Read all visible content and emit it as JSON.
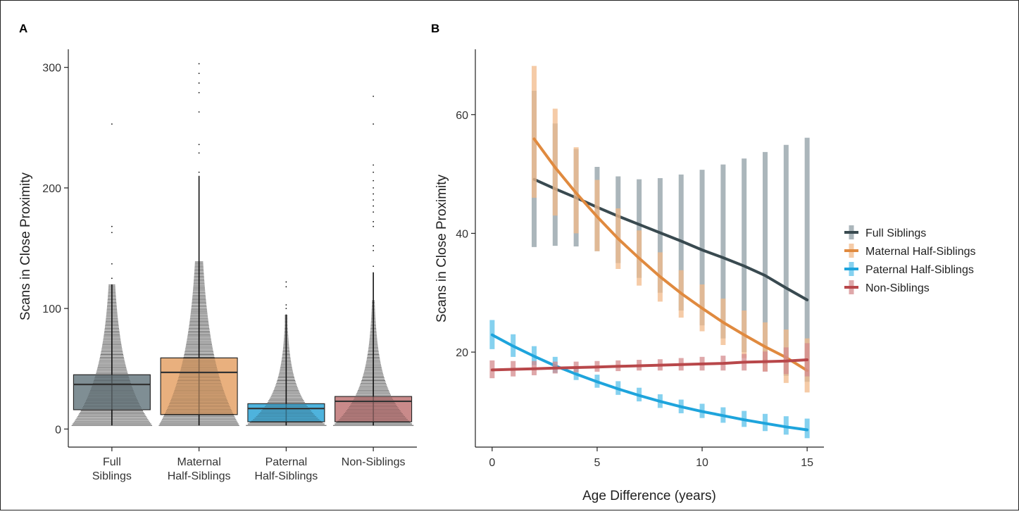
{
  "figure": {
    "border_color": "#222222"
  },
  "panel_a": {
    "label": "A",
    "chart_data": {
      "type": "box",
      "ylabel": "Scans in Close Proximity",
      "xlabel": "",
      "ylim": [
        -15,
        315
      ],
      "yticks": [
        0,
        100,
        200,
        300
      ],
      "grid": false,
      "categories": [
        {
          "lines": [
            "Full",
            "Siblings"
          ],
          "color": "#7f8e94",
          "q1": 16,
          "median": 37,
          "q3": 45,
          "whisker_low": 3,
          "whisker_high": 120,
          "outliers": [
            125,
            137,
            163,
            168,
            253
          ]
        },
        {
          "lines": [
            "Maternal",
            "Half-Siblings"
          ],
          "color": "#e9b07e",
          "q1": 12,
          "median": 47,
          "q3": 59,
          "whisker_low": 3,
          "whisker_high": 210,
          "outliers": [
            213,
            229,
            236,
            263,
            279,
            287,
            295,
            303
          ]
        },
        {
          "lines": [
            "Paternal",
            "Half-Siblings"
          ],
          "color": "#4fb3dd",
          "q1": 6,
          "median": 17,
          "q3": 21,
          "whisker_low": 3,
          "whisker_high": 95,
          "outliers": [
            100,
            103,
            118,
            122
          ]
        },
        {
          "lines": [
            "Non-Siblings"
          ],
          "color": "#c98a8a",
          "q1": 6,
          "median": 23,
          "q3": 27,
          "whisker_low": 3,
          "whisker_high": 130,
          "outliers": [
            135,
            148,
            152,
            168,
            172,
            180,
            185,
            190,
            195,
            200,
            206,
            213,
            219,
            253,
            276
          ]
        }
      ]
    }
  },
  "panel_b": {
    "label": "B",
    "chart_data": {
      "type": "line",
      "xlabel": "Age Difference (years)",
      "ylabel": "Scans in Close Proximity",
      "xlim": [
        -0.8,
        15.8
      ],
      "ylim": [
        4,
        71
      ],
      "xticks": [
        0,
        5,
        10,
        15
      ],
      "yticks": [
        20,
        40,
        60
      ],
      "grid": false,
      "legend_position": "right",
      "series": [
        {
          "name": "Full Siblings",
          "color": "#394a50",
          "band_color": "#8f9ea4",
          "x": [
            2,
            3,
            4,
            5,
            6,
            7,
            8,
            9,
            10,
            11,
            12,
            13,
            14,
            15
          ],
          "y": [
            49.1,
            47.5,
            46.0,
            44.4,
            42.9,
            41.5,
            40.1,
            38.7,
            37.2,
            35.9,
            34.5,
            32.9,
            30.8,
            28.8
          ],
          "lo": [
            37.7,
            37.9,
            37.8,
            37.0,
            35.0,
            32.5,
            30.0,
            27.0,
            24.5,
            22.3,
            20.0,
            17.9,
            16.0,
            15.0
          ],
          "hi": [
            64.0,
            58.5,
            54.2,
            51.2,
            49.6,
            49.1,
            49.3,
            49.9,
            50.7,
            51.6,
            52.6,
            53.7,
            54.9,
            56.1
          ]
        },
        {
          "name": "Maternal Half-Siblings",
          "color": "#e08a3f",
          "band_color": "#f2b98a",
          "x": [
            2,
            3,
            4,
            5,
            6,
            7,
            8,
            9,
            10,
            11,
            12,
            13,
            14,
            15
          ],
          "y": [
            55.9,
            51.1,
            46.8,
            42.8,
            39.1,
            35.8,
            32.7,
            29.9,
            27.4,
            25.0,
            22.9,
            20.9,
            19.1,
            16.9
          ],
          "lo": [
            46.0,
            43.0,
            40.0,
            37.0,
            34.0,
            31.2,
            28.5,
            25.8,
            23.5,
            21.2,
            19.0,
            16.8,
            14.8,
            13.2
          ],
          "hi": [
            68.2,
            61.0,
            54.5,
            49.0,
            44.2,
            40.5,
            36.8,
            33.8,
            31.4,
            29.0,
            27.0,
            25.0,
            23.8,
            22.3
          ]
        },
        {
          "name": "Paternal Half-Siblings",
          "color": "#1ea4dc",
          "band_color": "#5cc1e9",
          "x": [
            0,
            1,
            2,
            3,
            4,
            5,
            6,
            7,
            8,
            9,
            10,
            11,
            12,
            13,
            14,
            15
          ],
          "y": [
            22.9,
            21.0,
            19.3,
            17.7,
            16.3,
            15.0,
            13.8,
            12.7,
            11.7,
            10.8,
            10.0,
            9.3,
            8.6,
            8.0,
            7.4,
            6.9
          ],
          "lo": [
            20.5,
            19.2,
            17.8,
            16.5,
            15.3,
            14.0,
            12.8,
            11.7,
            10.6,
            9.7,
            8.9,
            8.1,
            7.4,
            6.7,
            6.1,
            5.5
          ],
          "hi": [
            25.4,
            23.0,
            21.0,
            19.2,
            17.5,
            16.2,
            15.1,
            14.0,
            12.9,
            12.0,
            11.3,
            10.7,
            10.1,
            9.6,
            9.2,
            8.8
          ]
        },
        {
          "name": "Non-Siblings",
          "color": "#b8474a",
          "band_color": "#d48b8d",
          "x": [
            0,
            1,
            2,
            3,
            4,
            5,
            6,
            7,
            8,
            9,
            10,
            11,
            12,
            13,
            14,
            15
          ],
          "y": [
            17.0,
            17.1,
            17.2,
            17.3,
            17.4,
            17.5,
            17.6,
            17.7,
            17.8,
            17.9,
            18.0,
            18.1,
            18.3,
            18.4,
            18.5,
            18.7
          ],
          "lo": [
            15.6,
            15.9,
            16.1,
            16.4,
            16.6,
            16.7,
            16.8,
            16.9,
            16.9,
            16.9,
            16.9,
            16.9,
            16.9,
            16.7,
            16.3,
            15.9
          ],
          "hi": [
            18.6,
            18.5,
            18.5,
            18.4,
            18.4,
            18.5,
            18.6,
            18.7,
            18.8,
            19.0,
            19.2,
            19.4,
            19.7,
            20.1,
            20.8,
            21.5
          ]
        }
      ]
    }
  }
}
